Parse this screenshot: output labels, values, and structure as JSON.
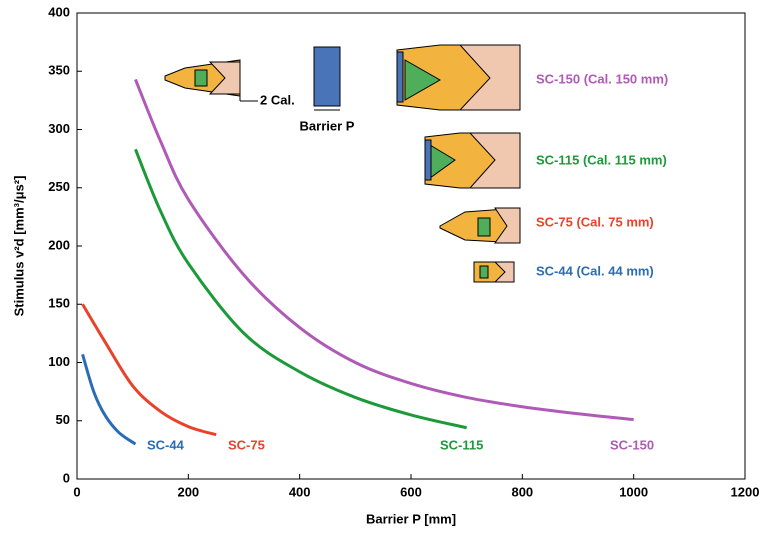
{
  "chart_data": {
    "type": "line",
    "x_label": "Barrier P [mm]",
    "y_label": "Stimulus v²d [mm³/μs²]",
    "xlim": [
      0,
      1200
    ],
    "xticks": [
      0,
      200,
      400,
      600,
      800,
      1000,
      1200
    ],
    "ylim": [
      0,
      400
    ],
    "yticks": [
      0,
      50,
      100,
      150,
      200,
      250,
      300,
      350,
      400
    ],
    "grid": false,
    "series": [
      {
        "name": "SC-44",
        "legend_label": "SC-44  (Cal. 44 mm)",
        "color": "#2a6db5",
        "x": [
          10,
          30,
          50,
          75,
          105
        ],
        "values": [
          107,
          75,
          55,
          40,
          30
        ]
      },
      {
        "name": "SC-75",
        "legend_label": "SC-75  (Cal. 75 mm)",
        "color": "#e8432a",
        "x": [
          10,
          50,
          100,
          150,
          200,
          250
        ],
        "values": [
          150,
          118,
          80,
          58,
          45,
          38
        ]
      },
      {
        "name": "SC-115",
        "legend_label": "SC-115 (Cal. 115 mm)",
        "color": "#1c9a3a",
        "x": [
          105,
          150,
          200,
          300,
          400,
          500,
          600,
          700
        ],
        "values": [
          283,
          230,
          185,
          125,
          92,
          70,
          55,
          44
        ]
      },
      {
        "name": "SC-150",
        "legend_label": "SC-150 (Cal. 150 mm)",
        "color": "#b05ab8",
        "x": [
          105,
          150,
          200,
          300,
          400,
          500,
          600,
          700,
          800,
          900,
          1000
        ],
        "values": [
          343,
          290,
          240,
          175,
          130,
          100,
          82,
          70,
          62,
          56,
          51
        ]
      }
    ],
    "annotations": [
      "2 Cal.",
      "Barrier P"
    ]
  }
}
